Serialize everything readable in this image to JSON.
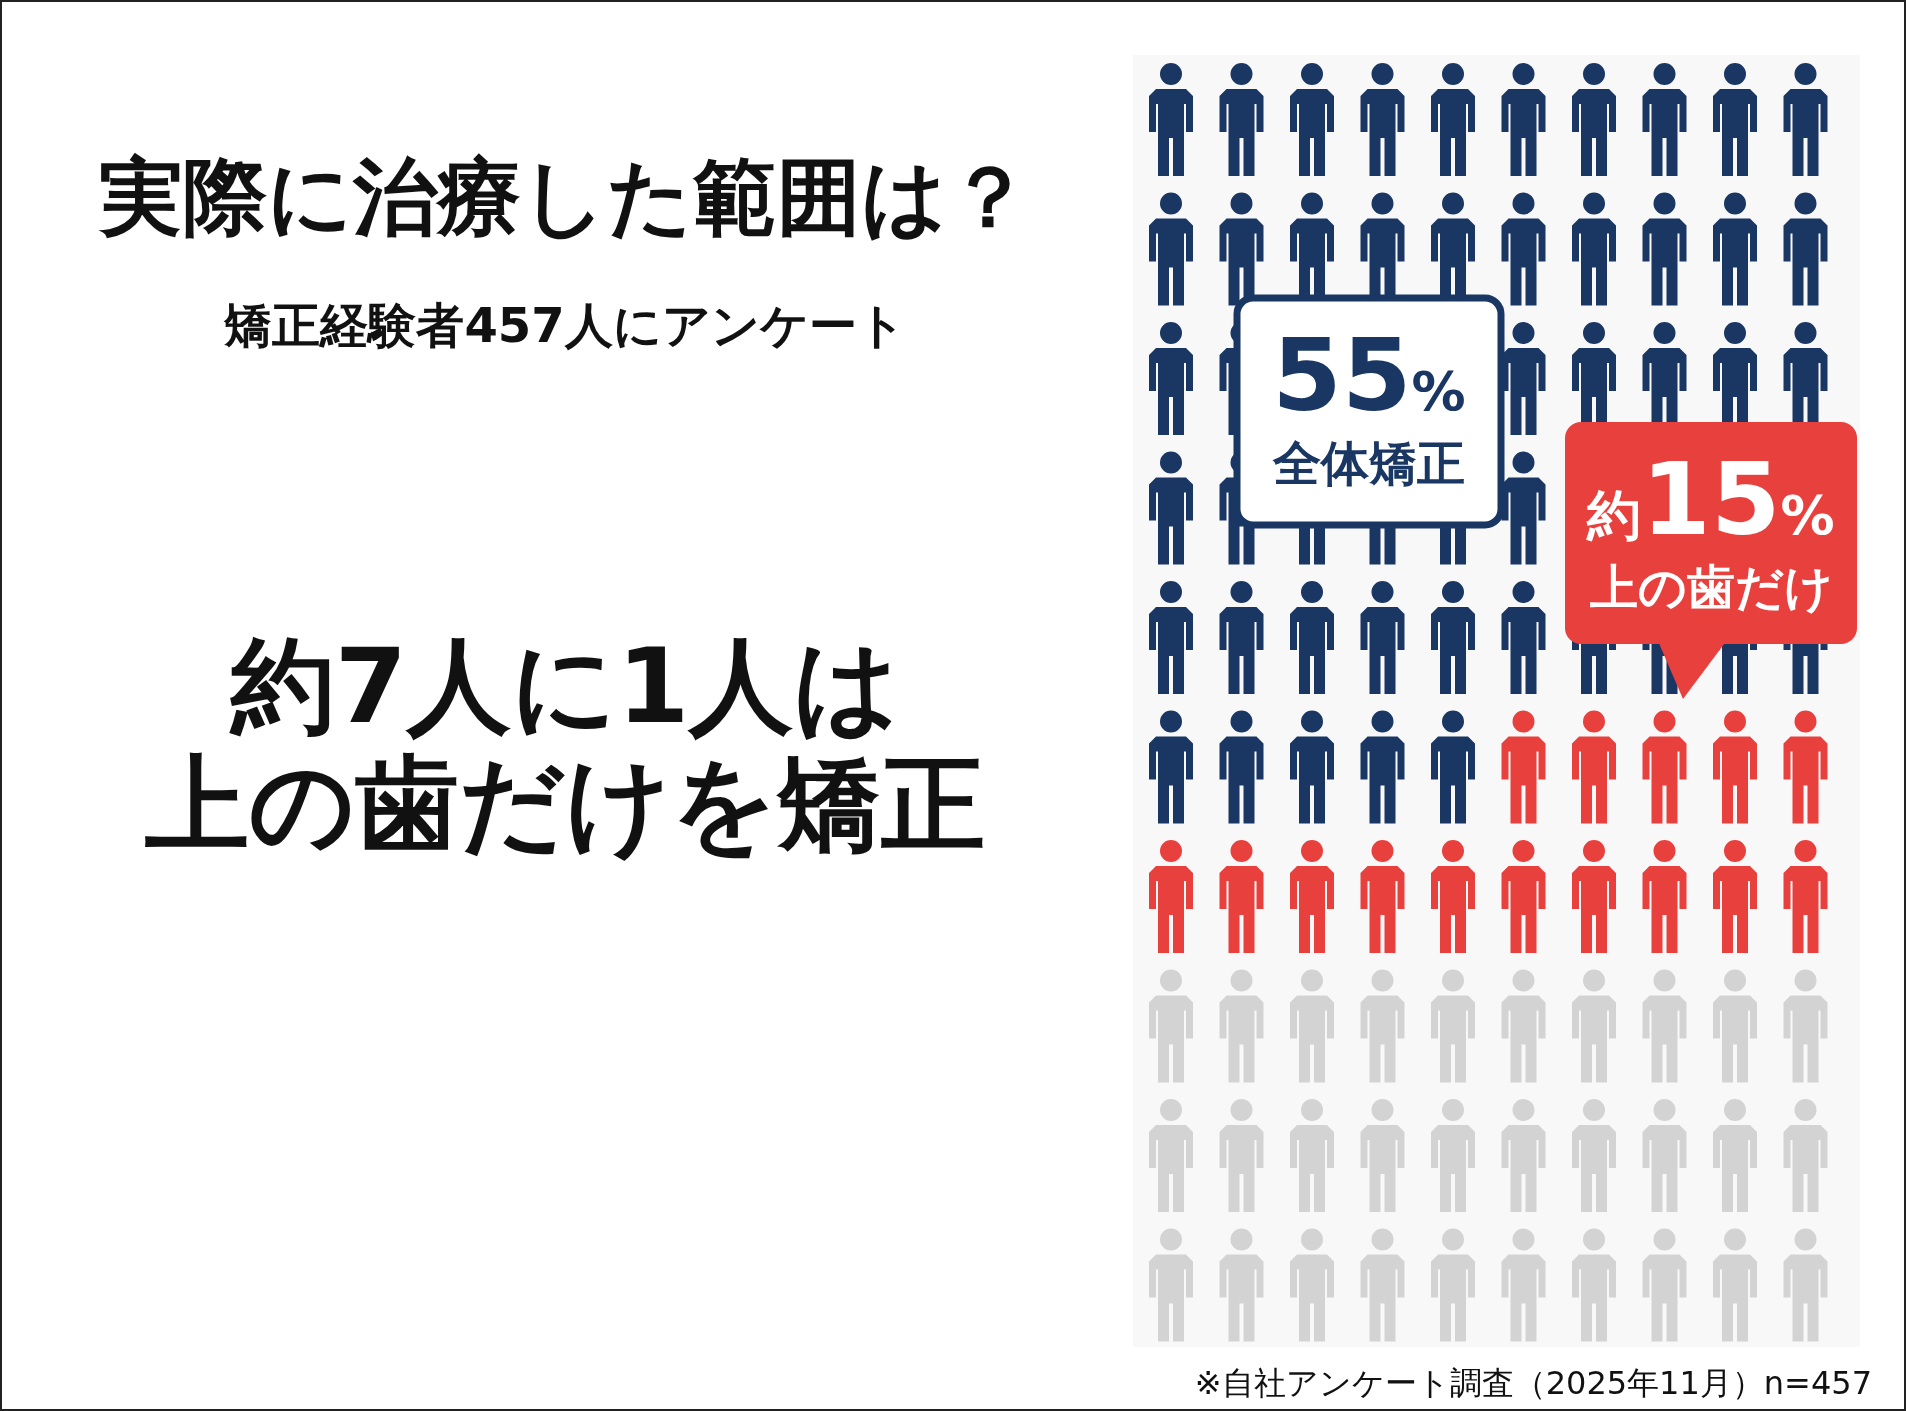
{
  "chart_data": {
    "type": "other",
    "title": "実際に治療した範囲は？",
    "subtitle": "矯正経験者457人にアンケート",
    "categories": [
      "全体矯正",
      "上の歯だけ"
    ],
    "values": [
      55,
      15
    ],
    "colors": [
      "#1a3764",
      "#e8403d"
    ],
    "value_labels": [
      "55%",
      "約15%"
    ],
    "annotations": [
      "約7人に1人は",
      "上の歯だけを矯正",
      "※自社アンケート調査（2025年11月）n=457"
    ]
  }
}
